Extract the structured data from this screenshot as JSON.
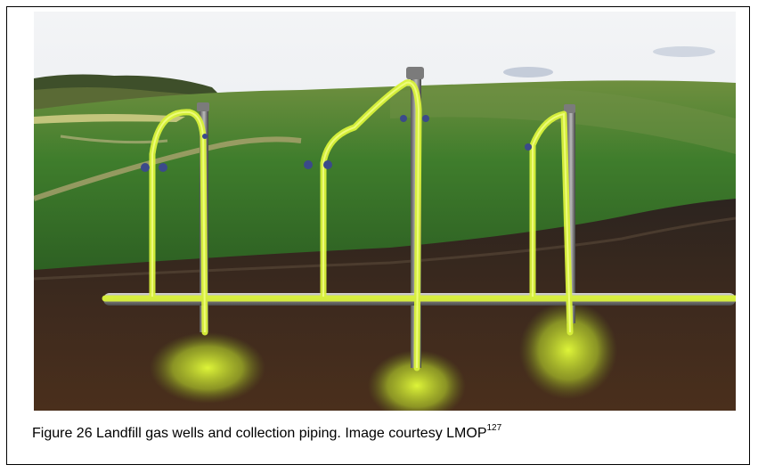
{
  "figure": {
    "image_description_icon": "landfill-gas-wells-illustration",
    "caption_main": "Figure 26  Landfill gas wells and collection piping.  Image courtesy LMOP",
    "caption_reference": "127"
  },
  "colors": {
    "sky": "#e4e9ef",
    "grass": "#3d7a2c",
    "soil": "#3b2a20",
    "gas": "#d9f23a",
    "pipe": "#9a9a9a"
  }
}
